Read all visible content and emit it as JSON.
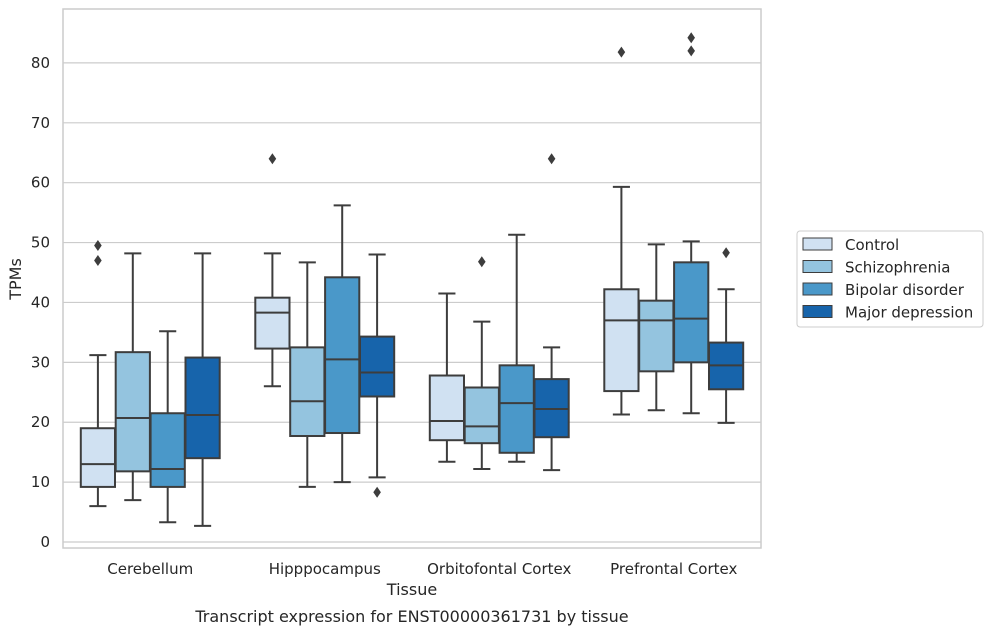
{
  "chart_data": {
    "type": "box",
    "xlabel": "Tissue",
    "ylabel": "TPMs",
    "caption": "Transcript expression for ENST00000361731 by tissue",
    "ylim": [
      -1,
      89
    ],
    "yticks": [
      0,
      10,
      20,
      30,
      40,
      50,
      60,
      70,
      80
    ],
    "grid": true,
    "legend_position": "right",
    "categories": [
      "Cerebellum",
      "Hipppocampus",
      "Orbitofontal Cortex",
      "Prefrontal Cortex"
    ],
    "series": [
      {
        "name": "Control",
        "color": "#d0e1f2",
        "boxes": [
          {
            "whislo": 6,
            "q1": 9.2,
            "med": 13,
            "q3": 19,
            "whishi": 31.2,
            "fliers": [
              47,
              49.5
            ]
          },
          {
            "whislo": 26,
            "q1": 32.3,
            "med": 38.3,
            "q3": 40.8,
            "whishi": 48.2,
            "fliers": [
              64
            ]
          },
          {
            "whislo": 13.4,
            "q1": 17,
            "med": 20.2,
            "q3": 27.8,
            "whishi": 41.5,
            "fliers": []
          },
          {
            "whislo": 21.3,
            "q1": 25.2,
            "med": 37,
            "q3": 42.2,
            "whishi": 59.3,
            "fliers": [
              81.8
            ]
          }
        ]
      },
      {
        "name": "Schizophrenia",
        "color": "#94c4df",
        "boxes": [
          {
            "whislo": 7,
            "q1": 11.8,
            "med": 20.7,
            "q3": 31.7,
            "whishi": 48.2,
            "fliers": []
          },
          {
            "whislo": 9.2,
            "q1": 17.7,
            "med": 23.5,
            "q3": 32.5,
            "whishi": 46.7,
            "fliers": []
          },
          {
            "whislo": 12.2,
            "q1": 16.5,
            "med": 19.3,
            "q3": 25.8,
            "whishi": 36.8,
            "fliers": [
              46.8
            ]
          },
          {
            "whislo": 22,
            "q1": 28.5,
            "med": 37,
            "q3": 40.3,
            "whishi": 49.7,
            "fliers": []
          }
        ]
      },
      {
        "name": "Bipolar disorder",
        "color": "#4a98c9",
        "boxes": [
          {
            "whislo": 3.3,
            "q1": 9.2,
            "med": 12.2,
            "q3": 21.5,
            "whishi": 35.2,
            "fliers": []
          },
          {
            "whislo": 10,
            "q1": 18.2,
            "med": 30.5,
            "q3": 44.2,
            "whishi": 56.2,
            "fliers": []
          },
          {
            "whislo": 13.4,
            "q1": 14.9,
            "med": 23.2,
            "q3": 29.5,
            "whishi": 51.3,
            "fliers": []
          },
          {
            "whislo": 21.5,
            "q1": 30,
            "med": 37.3,
            "q3": 46.7,
            "whishi": 50.2,
            "fliers": [
              82,
              84.2
            ]
          }
        ]
      },
      {
        "name": "Major depression",
        "color": "#1764ab",
        "boxes": [
          {
            "whislo": 2.7,
            "q1": 14,
            "med": 21.2,
            "q3": 30.8,
            "whishi": 48.2,
            "fliers": []
          },
          {
            "whislo": 10.8,
            "q1": 24.3,
            "med": 28.3,
            "q3": 34.3,
            "whishi": 48,
            "fliers": [
              8.3
            ]
          },
          {
            "whislo": 12,
            "q1": 17.5,
            "med": 22.2,
            "q3": 27.2,
            "whishi": 32.5,
            "fliers": [
              64
            ]
          },
          {
            "whislo": 19.9,
            "q1": 25.5,
            "med": 29.5,
            "q3": 33.3,
            "whishi": 42.2,
            "fliers": [
              48.3
            ]
          }
        ]
      }
    ]
  }
}
